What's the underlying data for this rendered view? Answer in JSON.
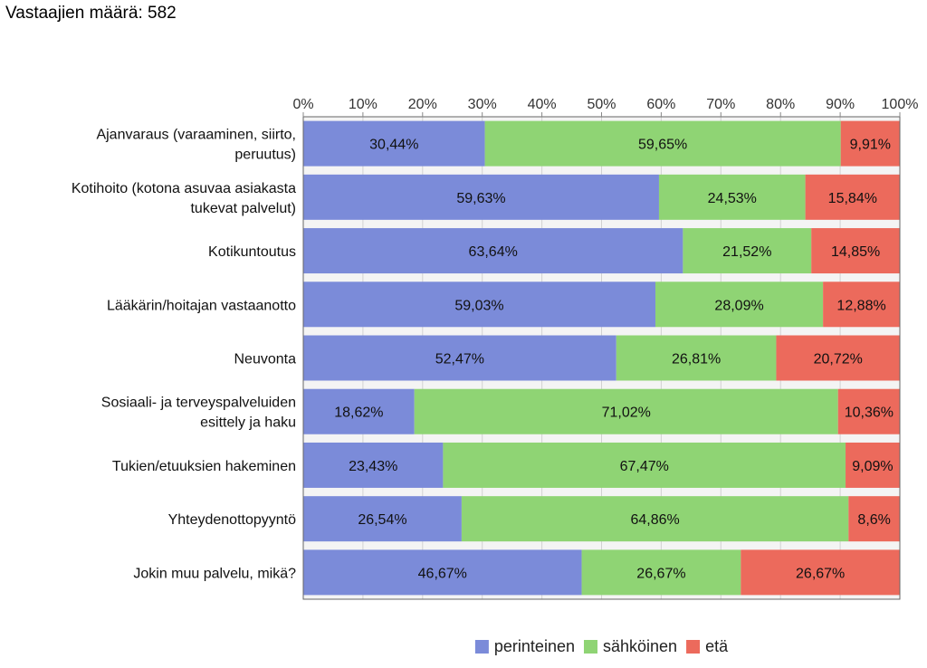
{
  "header": {
    "respondents_text": "Vastaajien määrä: 582"
  },
  "chart_data": {
    "type": "bar",
    "orientation": "horizontal",
    "stacked": true,
    "title": "",
    "xlabel": "",
    "ylabel": "",
    "xlim": [
      0,
      100
    ],
    "x_ticks": [
      "0%",
      "10%",
      "20%",
      "30%",
      "40%",
      "50%",
      "60%",
      "70%",
      "80%",
      "90%",
      "100%"
    ],
    "grid": true,
    "legend_position": "bottom",
    "categories": [
      [
        "Ajanvaraus (varaaminen, siirto,",
        "peruutus)"
      ],
      [
        "Kotihoito (kotona asuvaa asiakasta",
        "tukevat palvelut)"
      ],
      [
        "Kotikuntoutus"
      ],
      [
        "Lääkärin/hoitajan vastaanotto"
      ],
      [
        "Neuvonta"
      ],
      [
        "Sosiaali- ja terveyspalveluiden",
        "esittely ja haku"
      ],
      [
        "Tukien/etuuksien hakeminen"
      ],
      [
        "Yhteydenottopyyntö"
      ],
      [
        "Jokin muu palvelu, mikä?"
      ]
    ],
    "series": [
      {
        "name": "perinteinen",
        "color": "#7b8bd9",
        "values": [
          30.44,
          59.63,
          63.64,
          59.03,
          52.47,
          18.62,
          23.43,
          26.54,
          46.67
        ],
        "labels": [
          "30,44%",
          "59,63%",
          "63,64%",
          "59,03%",
          "52,47%",
          "18,62%",
          "23,43%",
          "26,54%",
          "46,67%"
        ]
      },
      {
        "name": "sähköinen",
        "color": "#8fd474",
        "values": [
          59.65,
          24.53,
          21.52,
          28.09,
          26.81,
          71.02,
          67.47,
          64.86,
          26.67
        ],
        "labels": [
          "59,65%",
          "24,53%",
          "21,52%",
          "28,09%",
          "26,81%",
          "71,02%",
          "67,47%",
          "64,86%",
          "26,67%"
        ]
      },
      {
        "name": "etä",
        "color": "#ec6a5c",
        "values": [
          9.91,
          15.84,
          14.85,
          12.88,
          20.72,
          10.36,
          9.09,
          8.6,
          26.67
        ],
        "labels": [
          "9,91%",
          "15,84%",
          "14,85%",
          "12,88%",
          "20,72%",
          "10,36%",
          "9,09%",
          "8,6%",
          "26,67%"
        ]
      }
    ]
  }
}
